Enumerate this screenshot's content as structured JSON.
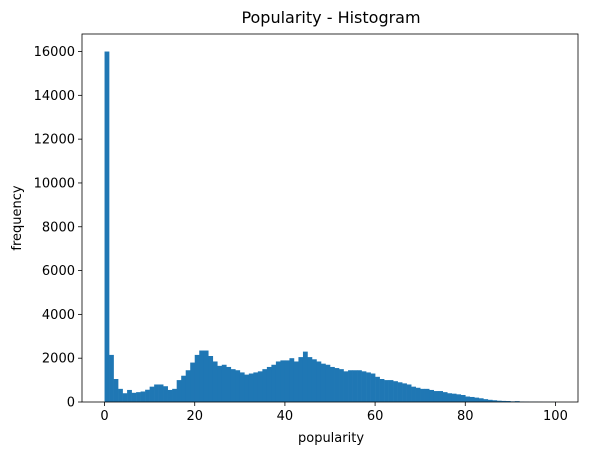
{
  "chart_data": {
    "type": "bar",
    "title": "Popularity - Histogram",
    "xlabel": "popularity",
    "ylabel": "frequency",
    "xlim": [
      -5,
      105
    ],
    "ylim": [
      0,
      16800
    ],
    "x_ticks": [
      0,
      20,
      40,
      60,
      80,
      100
    ],
    "y_ticks": [
      0,
      2000,
      4000,
      6000,
      8000,
      10000,
      12000,
      14000,
      16000
    ],
    "bin_start": 0,
    "bin_width": 1,
    "bar_color": "#1f77b4",
    "grid": false,
    "values": [
      16000,
      2150,
      1050,
      600,
      400,
      550,
      420,
      450,
      480,
      560,
      700,
      800,
      800,
      720,
      550,
      600,
      1000,
      1200,
      1450,
      1800,
      2150,
      2350,
      2350,
      2100,
      1850,
      1650,
      1700,
      1600,
      1500,
      1450,
      1350,
      1250,
      1300,
      1350,
      1400,
      1500,
      1600,
      1700,
      1850,
      1900,
      1900,
      2000,
      1850,
      2050,
      2300,
      2050,
      1950,
      1850,
      1750,
      1700,
      1600,
      1550,
      1500,
      1400,
      1450,
      1450,
      1450,
      1400,
      1350,
      1300,
      1150,
      1050,
      1000,
      1000,
      950,
      900,
      850,
      800,
      700,
      650,
      600,
      600,
      550,
      500,
      500,
      450,
      400,
      380,
      350,
      320,
      250,
      230,
      200,
      170,
      130,
      100,
      80,
      60,
      50,
      45,
      30,
      40,
      20,
      15,
      10,
      10,
      8,
      5,
      5,
      5
    ]
  }
}
